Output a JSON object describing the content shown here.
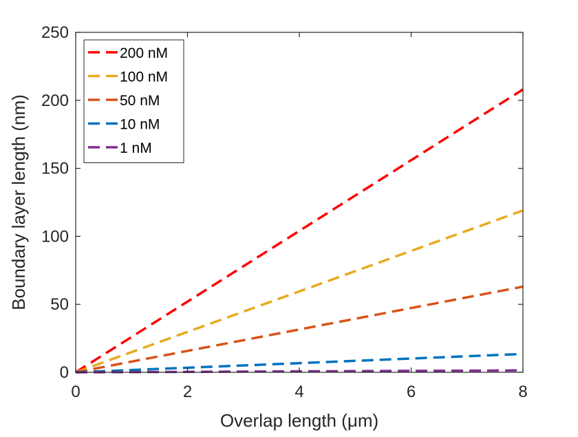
{
  "chart_data": {
    "type": "line",
    "title": "",
    "xlabel": "Overlap length (μm)",
    "ylabel": "Boundary layer length (nm)",
    "xlim": [
      0,
      8
    ],
    "ylim": [
      0,
      250
    ],
    "xticks": [
      0,
      2,
      4,
      6,
      8
    ],
    "yticks": [
      0,
      50,
      100,
      150,
      200,
      250
    ],
    "grid": false,
    "legend_position": "top-left",
    "line_style": "dashed",
    "series": [
      {
        "name": "200 nM",
        "color": "#ff0000",
        "x": [
          0,
          8
        ],
        "y": [
          0,
          208
        ]
      },
      {
        "name": "100 nM",
        "color": "#e8aa1e",
        "x": [
          0,
          8
        ],
        "y": [
          0,
          119
        ]
      },
      {
        "name": "50 nM",
        "color": "#d95319",
        "x": [
          0,
          8
        ],
        "y": [
          0,
          63
        ]
      },
      {
        "name": "10 nM",
        "color": "#0072bd",
        "x": [
          0,
          8
        ],
        "y": [
          0,
          13.5
        ]
      },
      {
        "name": "1 nM",
        "color": "#7e2f8e",
        "x": [
          0,
          8
        ],
        "y": [
          0,
          1.4
        ]
      }
    ]
  }
}
